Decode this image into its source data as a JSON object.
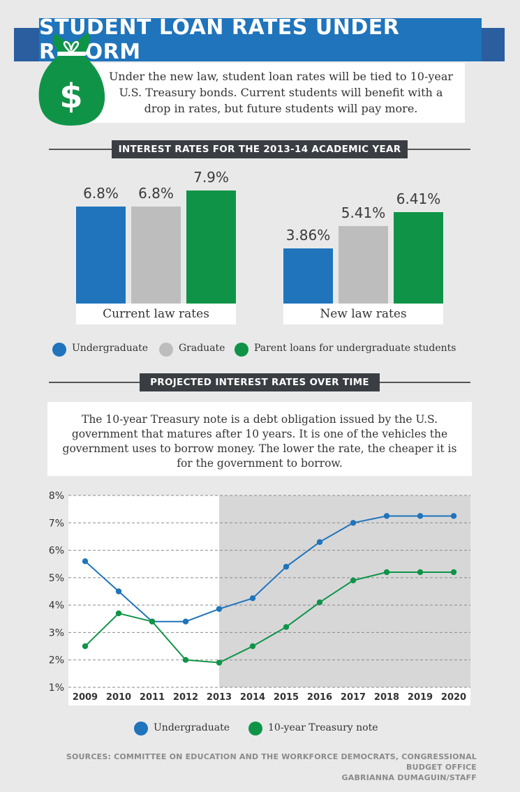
{
  "title": "STUDENT LOAN RATES UNDER REFORM",
  "intro": "Under the new law, student loan rates will be tied to 10-year U.S. Treasury bonds. Current students will benefit with a drop in rates, but future students will pay more.",
  "icons": {
    "money_bag": "money-bag-icon"
  },
  "colors": {
    "undergraduate": "#1f74bb",
    "graduate": "#bdbdbd",
    "parent": "#0f9447",
    "treasury": "#0f9447",
    "banner": "#1f74bb",
    "projection_shade": "#d7d7d8"
  },
  "section1": {
    "label": "INTEREST RATES FOR THE 2013-14 ACADEMIC YEAR"
  },
  "section2": {
    "label": "PROJECTED INTEREST RATES OVER TIME"
  },
  "description": "The 10-year Treasury note is a debt obligation issued by the U.S. government that matures after 10 years. It is one of the vehicles the government uses to borrow money. The lower the rate, the cheaper it is for the government to borrow.",
  "legend1": [
    "Undergraduate",
    "Graduate",
    "Parent loans for undergraduate students"
  ],
  "legend2": [
    "Undergraduate",
    "10-year Treasury note"
  ],
  "sources": "SOURCES: COMMITTEE ON EDUCATION AND THE WORKFORCE DEMOCRATS, CONGRESSIONAL BUDGET OFFICE",
  "credit": "GABRIANNA DUMAGUIN/STAFF",
  "chart_data": [
    {
      "type": "bar",
      "title": "INTEREST RATES FOR THE 2013-14 ACADEMIC YEAR",
      "categories": [
        "Current law rates",
        "New law rates"
      ],
      "series": [
        {
          "name": "Undergraduate",
          "values": [
            6.8,
            3.86
          ],
          "labels": [
            "6.8%",
            "3.86%"
          ]
        },
        {
          "name": "Graduate",
          "values": [
            6.8,
            5.41
          ],
          "labels": [
            "6.8%",
            "5.41%"
          ]
        },
        {
          "name": "Parent loans for undergraduate students",
          "values": [
            7.9,
            6.41
          ],
          "labels": [
            "7.9%",
            "6.41%"
          ]
        }
      ],
      "ylim": [
        0,
        7.9
      ],
      "legend": "bottom"
    },
    {
      "type": "line",
      "title": "PROJECTED INTEREST RATES OVER TIME",
      "x": [
        "2009",
        "2010",
        "2011",
        "2012",
        "2013",
        "2014",
        "2015",
        "2016",
        "2017",
        "2018",
        "2019",
        "2020"
      ],
      "series": [
        {
          "name": "Undergraduate",
          "values": [
            5.6,
            4.5,
            3.4,
            3.4,
            3.86,
            4.25,
            5.4,
            6.3,
            7.0,
            7.25,
            7.25,
            7.25
          ]
        },
        {
          "name": "10-year Treasury note",
          "values": [
            2.5,
            3.7,
            3.4,
            2.0,
            1.9,
            2.5,
            3.2,
            4.1,
            4.9,
            5.2,
            5.2,
            5.2
          ]
        }
      ],
      "yticks": [
        "1%",
        "2%",
        "3%",
        "4%",
        "5%",
        "6%",
        "7%",
        "8%"
      ],
      "ylim": [
        1,
        8
      ],
      "grid": true,
      "projection_shaded_from": "2013",
      "legend": "bottom"
    }
  ]
}
